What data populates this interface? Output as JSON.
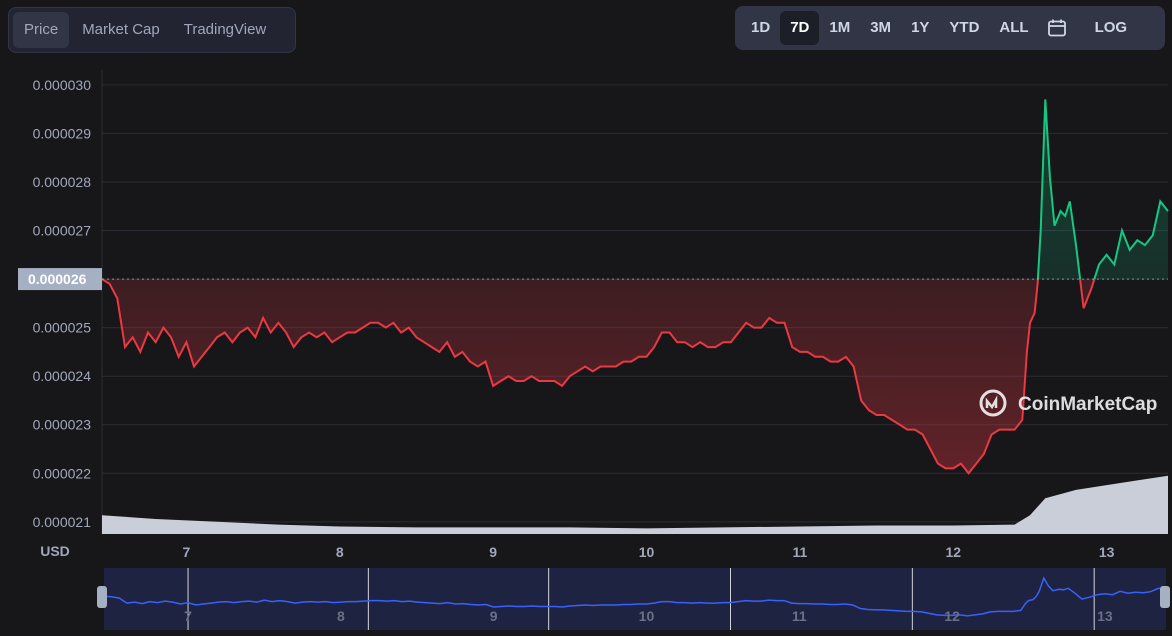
{
  "tabs": {
    "items": [
      "Price",
      "Market Cap",
      "TradingView"
    ],
    "active_index": 0
  },
  "ranges": {
    "items": [
      "1D",
      "7D",
      "1M",
      "3M",
      "1Y",
      "YTD",
      "ALL"
    ],
    "active_index": 1,
    "calendar_icon": "calendar-icon",
    "log_label": "LOG"
  },
  "colors": {
    "up": "#16c784",
    "down": "#ea3943",
    "background": "#17171a",
    "grid": "#2a2c35",
    "volume": "#d3d8e3",
    "navigator_line": "#3861fb"
  },
  "watermark": {
    "text": "CoinMarketCap",
    "icon": "coinmarketcap-logo-icon"
  },
  "chart_data": {
    "type": "line",
    "currency_label": "USD",
    "ylim": [
      2.075e-05,
      3.01e-05
    ],
    "y_ticks": [
      "0.000030",
      "0.000029",
      "0.000028",
      "0.000027",
      "0.000026",
      "0.000025",
      "0.000024",
      "0.000023",
      "0.000022",
      "0.000021"
    ],
    "y_tick_values": [
      3e-05,
      2.9e-05,
      2.8e-05,
      2.7e-05,
      2.6e-05,
      2.5e-05,
      2.4e-05,
      2.3e-05,
      2.2e-05,
      2.1e-05
    ],
    "x_ticks": [
      "7",
      "8",
      "9",
      "10",
      "11",
      "12",
      "13"
    ],
    "x_tick_values": [
      7,
      8,
      9,
      10,
      11,
      12,
      13
    ],
    "xlim": [
      6.45,
      13.4
    ],
    "baseline_label": "0.000026",
    "baseline_value": 2.6e-05,
    "grid": true,
    "series": [
      {
        "x": [
          6.45,
          6.5,
          6.55,
          6.6,
          6.65,
          6.7,
          6.75,
          6.8,
          6.85,
          6.9,
          6.95,
          7.0,
          7.05,
          7.1,
          7.15,
          7.2,
          7.25,
          7.3,
          7.35,
          7.4,
          7.45,
          7.5,
          7.55,
          7.6,
          7.65,
          7.7,
          7.75,
          7.8,
          7.85,
          7.9,
          7.95,
          8.0,
          8.05,
          8.1,
          8.15,
          8.2,
          8.25,
          8.3,
          8.35,
          8.4,
          8.45,
          8.5,
          8.55,
          8.6,
          8.65,
          8.7,
          8.75,
          8.8,
          8.85,
          8.9,
          8.95,
          9.0,
          9.05,
          9.1,
          9.15,
          9.2,
          9.25,
          9.3,
          9.35,
          9.4,
          9.45,
          9.5,
          9.55,
          9.6,
          9.65,
          9.7,
          9.75,
          9.8,
          9.85,
          9.9,
          9.95,
          10.0,
          10.05,
          10.1,
          10.15,
          10.2,
          10.25,
          10.3,
          10.35,
          10.4,
          10.45,
          10.5,
          10.55,
          10.6,
          10.65,
          10.7,
          10.75,
          10.8,
          10.85,
          10.9,
          10.95,
          11.0,
          11.05,
          11.1,
          11.15,
          11.2,
          11.25,
          11.3,
          11.35,
          11.4,
          11.45,
          11.5,
          11.55,
          11.6,
          11.65,
          11.7,
          11.75,
          11.8,
          11.85,
          11.9,
          11.95,
          12.0,
          12.05,
          12.1,
          12.15,
          12.2,
          12.25,
          12.3,
          12.35,
          12.4,
          12.45,
          12.48,
          12.5,
          12.53,
          12.55,
          12.57,
          12.6,
          12.63,
          12.66,
          12.7,
          12.73,
          12.76,
          12.8,
          12.85,
          12.9,
          12.95,
          13.0,
          13.05,
          13.1,
          13.15,
          13.2,
          13.25,
          13.3,
          13.35,
          13.4
        ],
        "y": [
          2.6e-05,
          2.59e-05,
          2.56e-05,
          2.46e-05,
          2.48e-05,
          2.45e-05,
          2.49e-05,
          2.47e-05,
          2.5e-05,
          2.48e-05,
          2.44e-05,
          2.47e-05,
          2.42e-05,
          2.44e-05,
          2.46e-05,
          2.48e-05,
          2.49e-05,
          2.47e-05,
          2.49e-05,
          2.5e-05,
          2.48e-05,
          2.52e-05,
          2.49e-05,
          2.51e-05,
          2.49e-05,
          2.46e-05,
          2.48e-05,
          2.49e-05,
          2.48e-05,
          2.49e-05,
          2.47e-05,
          2.48e-05,
          2.49e-05,
          2.49e-05,
          2.5e-05,
          2.51e-05,
          2.51e-05,
          2.5e-05,
          2.51e-05,
          2.49e-05,
          2.5e-05,
          2.48e-05,
          2.47e-05,
          2.46e-05,
          2.45e-05,
          2.47e-05,
          2.44e-05,
          2.45e-05,
          2.43e-05,
          2.42e-05,
          2.43e-05,
          2.38e-05,
          2.39e-05,
          2.4e-05,
          2.39e-05,
          2.39e-05,
          2.4e-05,
          2.39e-05,
          2.39e-05,
          2.39e-05,
          2.38e-05,
          2.4e-05,
          2.41e-05,
          2.42e-05,
          2.41e-05,
          2.42e-05,
          2.42e-05,
          2.42e-05,
          2.43e-05,
          2.43e-05,
          2.44e-05,
          2.44e-05,
          2.46e-05,
          2.49e-05,
          2.49e-05,
          2.47e-05,
          2.47e-05,
          2.46e-05,
          2.47e-05,
          2.46e-05,
          2.46e-05,
          2.47e-05,
          2.47e-05,
          2.49e-05,
          2.51e-05,
          2.5e-05,
          2.5e-05,
          2.52e-05,
          2.51e-05,
          2.51e-05,
          2.46e-05,
          2.45e-05,
          2.45e-05,
          2.44e-05,
          2.44e-05,
          2.43e-05,
          2.43e-05,
          2.44e-05,
          2.42e-05,
          2.35e-05,
          2.33e-05,
          2.32e-05,
          2.32e-05,
          2.31e-05,
          2.3e-05,
          2.29e-05,
          2.29e-05,
          2.28e-05,
          2.25e-05,
          2.22e-05,
          2.21e-05,
          2.21e-05,
          2.22e-05,
          2.2e-05,
          2.22e-05,
          2.24e-05,
          2.28e-05,
          2.29e-05,
          2.29e-05,
          2.29e-05,
          2.31e-05,
          2.45e-05,
          2.51e-05,
          2.53e-05,
          2.59e-05,
          2.7e-05,
          2.97e-05,
          2.81e-05,
          2.71e-05,
          2.74e-05,
          2.73e-05,
          2.76e-05,
          2.67e-05,
          2.54e-05,
          2.58e-05,
          2.63e-05,
          2.65e-05,
          2.63e-05,
          2.7e-05,
          2.66e-05,
          2.68e-05,
          2.67e-05,
          2.69e-05,
          2.76e-05,
          2.74e-05
        ]
      }
    ],
    "volume": {
      "x": [
        6.45,
        6.8,
        7.2,
        7.6,
        8.0,
        8.5,
        9.0,
        9.5,
        10.0,
        10.5,
        11.0,
        11.5,
        12.0,
        12.4,
        12.5,
        12.6,
        12.8,
        13.0,
        13.2,
        13.4
      ],
      "values": [
        0.2,
        0.16,
        0.13,
        0.1,
        0.08,
        0.07,
        0.07,
        0.07,
        0.06,
        0.07,
        0.08,
        0.09,
        0.09,
        0.1,
        0.2,
        0.38,
        0.47,
        0.52,
        0.57,
        0.62
      ]
    },
    "navigator": {
      "x_ticks": [
        "7",
        "8",
        "9",
        "10",
        "11",
        "12",
        "13"
      ],
      "x_tick_values": [
        7,
        8,
        9,
        10,
        11,
        12,
        13
      ]
    }
  }
}
